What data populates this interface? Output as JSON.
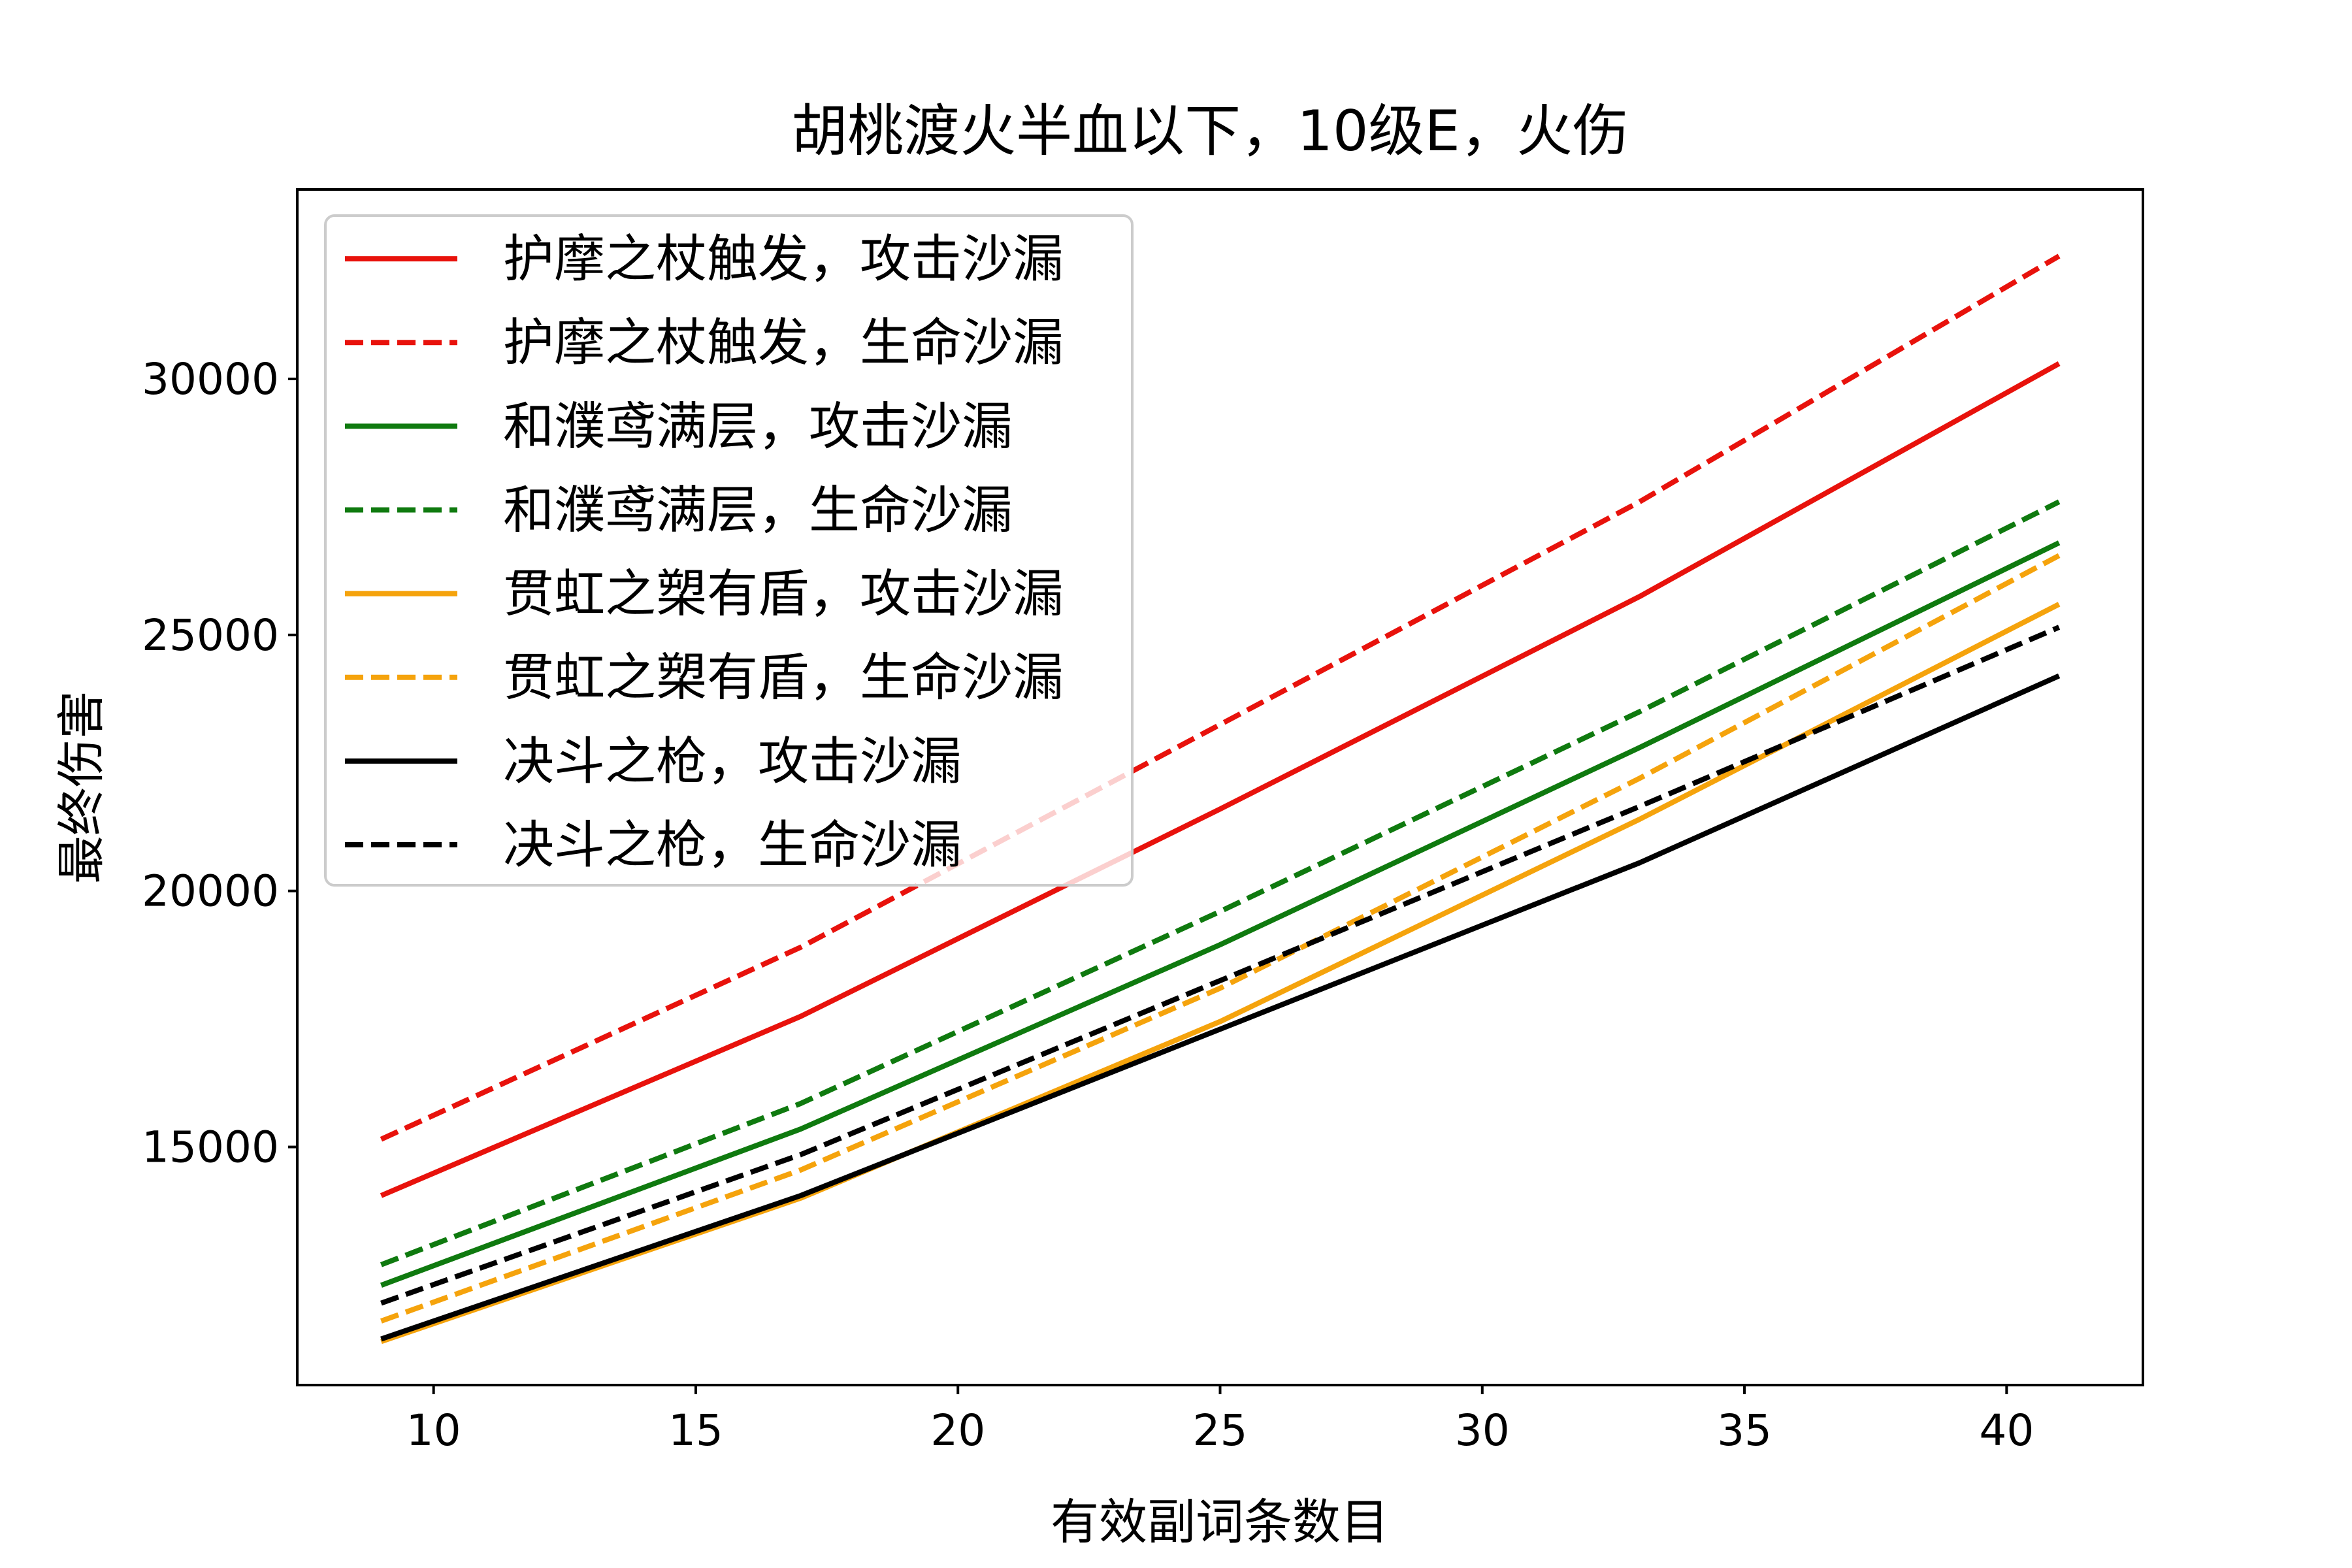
{
  "chart_data": {
    "type": "line",
    "title": "胡桃渡火半血以下，10级E，火伤",
    "xlabel": "有效副词条数目",
    "ylabel": "最终伤害",
    "xlim": [
      7.4,
      42.6
    ],
    "ylim": [
      10350,
      33700
    ],
    "xticks": [
      10,
      15,
      20,
      25,
      30,
      35,
      40
    ],
    "yticks": [
      15000,
      20000,
      25000,
      30000
    ],
    "grid": false,
    "legend_position": "upper left",
    "x": [
      9,
      17,
      25,
      33,
      41
    ],
    "series": [
      {
        "name": "护摩之杖触发，攻击沙漏",
        "color": "#e8120c",
        "dash": "solid",
        "values": [
          14050,
          17550,
          21600,
          25750,
          30300
        ]
      },
      {
        "name": "护摩之杖触发，生命沙漏",
        "color": "#e8120c",
        "dash": "dashed",
        "values": [
          15150,
          18900,
          23250,
          27600,
          32400
        ]
      },
      {
        "name": "和濮鸢满层，攻击沙漏",
        "color": "#0f7a0f",
        "dash": "solid",
        "values": [
          12300,
          15350,
          18950,
          22800,
          26800
        ]
      },
      {
        "name": "和濮鸢满层，生命沙漏",
        "color": "#0f7a0f",
        "dash": "dashed",
        "values": [
          12700,
          15850,
          19600,
          23500,
          27600
        ]
      },
      {
        "name": "贯虹之槊有盾，攻击沙漏",
        "color": "#f5a30c",
        "dash": "solid",
        "values": [
          11200,
          14000,
          17450,
          21400,
          25600
        ]
      },
      {
        "name": "贯虹之槊有盾，生命沙漏",
        "color": "#f5a30c",
        "dash": "dashed",
        "values": [
          11600,
          14550,
          18100,
          22200,
          26550
        ]
      },
      {
        "name": "决斗之枪，攻击沙漏",
        "color": "#000000",
        "dash": "solid",
        "values": [
          11250,
          14050,
          17300,
          20550,
          24200
        ]
      },
      {
        "name": "决斗之枪，生命沙漏",
        "color": "#000000",
        "dash": "dashed",
        "values": [
          11950,
          14850,
          18250,
          21650,
          25150
        ]
      }
    ]
  }
}
